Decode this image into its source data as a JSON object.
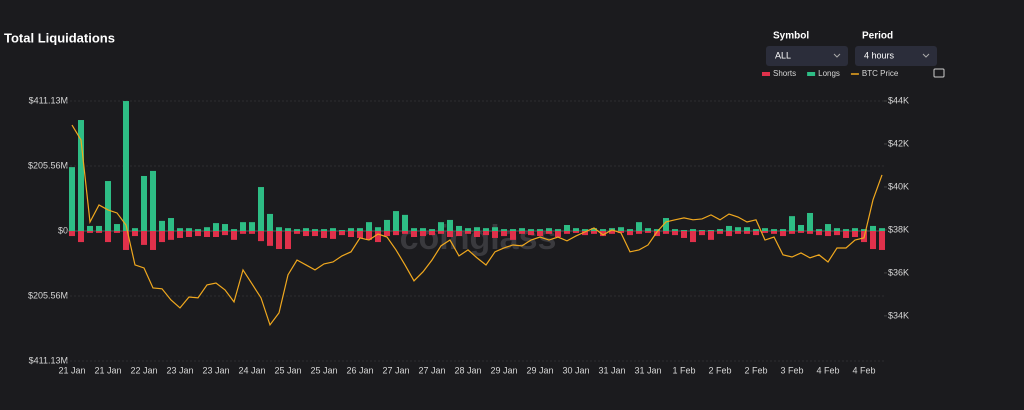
{
  "chart_data": {
    "type": "bar",
    "title": "Total Liquidations",
    "watermark": "coinglass",
    "categories": [
      "21 Jan",
      null,
      null,
      null,
      "21 Jan",
      null,
      null,
      null,
      "22 Jan",
      null,
      null,
      null,
      "23 Jan",
      null,
      null,
      null,
      "23 Jan",
      null,
      null,
      null,
      "24 Jan",
      null,
      null,
      null,
      "25 Jan",
      null,
      null,
      null,
      "25 Jan",
      null,
      null,
      null,
      "26 Jan",
      null,
      null,
      null,
      "27 Jan",
      null,
      null,
      null,
      "27 Jan",
      null,
      null,
      null,
      "28 Jan",
      null,
      null,
      null,
      "29 Jan",
      null,
      null,
      null,
      "29 Jan",
      null,
      null,
      null,
      "30 Jan",
      null,
      null,
      null,
      "31 Jan",
      null,
      null,
      null,
      "31 Jan",
      null,
      null,
      null,
      "1 Feb",
      null,
      null,
      null,
      "2 Feb",
      null,
      null,
      null,
      "2 Feb",
      null,
      null,
      null,
      "3 Feb",
      null,
      null,
      null,
      "4 Feb",
      null,
      null,
      null,
      "4 Feb",
      null,
      null
    ],
    "series": [
      {
        "name": "Shorts",
        "color": "#e0314b",
        "values": [
          -16,
          -35,
          -6,
          -6,
          -35,
          -6,
          -60,
          -16,
          -44,
          -60,
          -35,
          -28,
          -22,
          -19,
          -16,
          -19,
          -19,
          -13,
          -28,
          -9,
          -9,
          -32,
          -47,
          -57,
          -57,
          -9,
          -16,
          -16,
          -22,
          -25,
          -13,
          -19,
          -22,
          -28,
          -35,
          -16,
          -13,
          -9,
          -19,
          -16,
          -13,
          -9,
          -19,
          -16,
          -9,
          -19,
          -13,
          -22,
          -16,
          -28,
          -9,
          -13,
          -16,
          -9,
          -19,
          -9,
          -6,
          -13,
          -9,
          -16,
          -9,
          -6,
          -13,
          -9,
          -6,
          -16,
          -9,
          -13,
          -22,
          -35,
          -13,
          -28,
          -9,
          -16,
          -9,
          -9,
          -13,
          -6,
          -9,
          -16,
          -9,
          -6,
          -9,
          -13,
          -16,
          -13,
          -22,
          -19,
          -35,
          -57,
          -60
        ]
      },
      {
        "name": "Longs",
        "color": "#2ebd85",
        "values": [
          202,
          351,
          16,
          16,
          158,
          22,
          411,
          9,
          174,
          190,
          32,
          41,
          9,
          9,
          6,
          12,
          25,
          22,
          6,
          28,
          28,
          139,
          54,
          12,
          9,
          6,
          9,
          6,
          6,
          9,
          3,
          9,
          9,
          28,
          12,
          35,
          63,
          51,
          9,
          9,
          6,
          28,
          35,
          16,
          9,
          12,
          9,
          12,
          6,
          6,
          9,
          6,
          6,
          9,
          6,
          19,
          9,
          6,
          9,
          6,
          9,
          12,
          6,
          28,
          9,
          6,
          41,
          6,
          3,
          6,
          3,
          3,
          6,
          16,
          12,
          12,
          6,
          9,
          6,
          6,
          47,
          19,
          57,
          6,
          22,
          9,
          6,
          9,
          6,
          16,
          9
        ]
      },
      {
        "name": "BTC Price",
        "color": "#f0a81e",
        "type": "line",
        "axis": "y2",
        "values": [
          42880,
          42190,
          38370,
          39160,
          38930,
          38790,
          38230,
          36370,
          36230,
          35300,
          35260,
          34740,
          34370,
          34880,
          34840,
          35440,
          35530,
          35210,
          34650,
          36140,
          35490,
          34840,
          33580,
          34140,
          35910,
          36600,
          36370,
          36140,
          36420,
          36510,
          36790,
          36980,
          37630,
          37530,
          37810,
          37670,
          37070,
          36370,
          35630,
          36050,
          36600,
          37260,
          37530,
          36790,
          37070,
          36700,
          36370,
          36980,
          37160,
          37300,
          37260,
          37530,
          37670,
          37530,
          37670,
          37490,
          37720,
          37910,
          38090,
          37770,
          38000,
          37860,
          36980,
          37070,
          37300,
          37910,
          38370,
          38470,
          38560,
          38470,
          38510,
          38700,
          38470,
          38740,
          38600,
          38370,
          38470,
          37530,
          37670,
          36840,
          36740,
          36930,
          36700,
          36840,
          36510,
          37160,
          37160,
          37530,
          37630,
          39400,
          40560
        ]
      }
    ],
    "ylim": [
      -411.13,
      411.13
    ],
    "yticks": [
      {
        "value": 411.13,
        "label": "$411.13M"
      },
      {
        "value": 205.56,
        "label": "$205.56M"
      },
      {
        "value": 0,
        "label": "$0"
      },
      {
        "value": -205.56,
        "label": "$205.56M"
      },
      {
        "value": -411.13,
        "label": "$411.13M"
      }
    ],
    "y2lim": [
      31900,
      44000
    ],
    "y2ticks": [
      {
        "value": 44000,
        "label": "$44K"
      },
      {
        "value": 42000,
        "label": "$42K"
      },
      {
        "value": 40000,
        "label": "$40K"
      },
      {
        "value": 38000,
        "label": "$38K"
      },
      {
        "value": 36000,
        "label": "$36K"
      },
      {
        "value": 34000,
        "label": "$34K"
      }
    ],
    "grid": true
  },
  "controls": [
    {
      "label": "Symbol",
      "value": "ALL"
    },
    {
      "label": "Period",
      "value": "4 hours"
    }
  ]
}
